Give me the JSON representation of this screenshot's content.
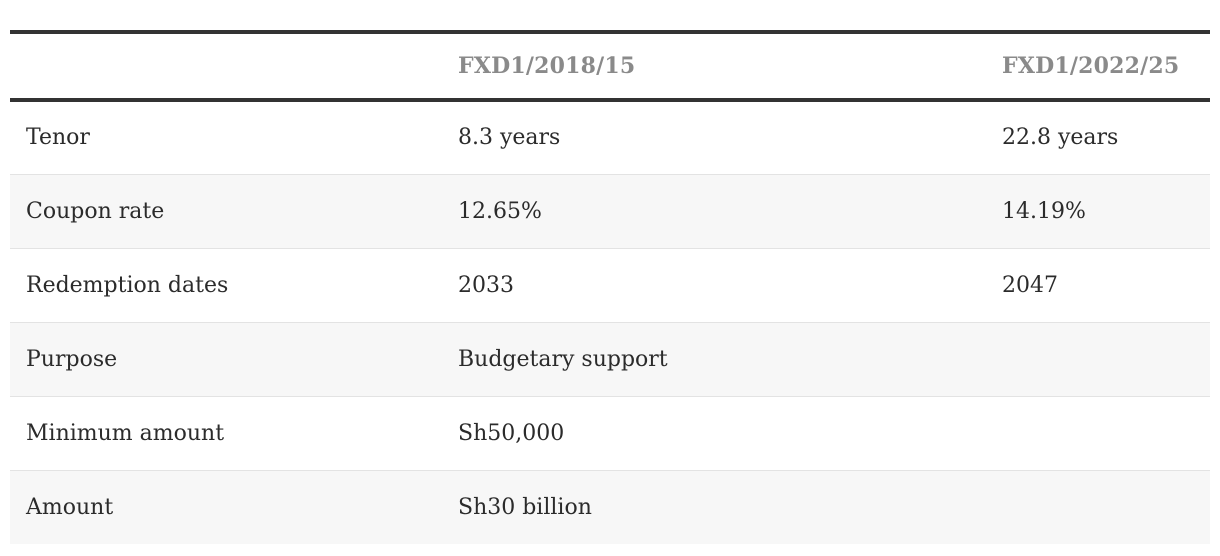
{
  "table": {
    "headers": [
      "",
      "FXD1/2018/15",
      "FXD1/2022/25"
    ],
    "rows": [
      {
        "label": "Tenor",
        "a": "8.3 years",
        "b": "22.8 years"
      },
      {
        "label": "Coupon rate",
        "a": "12.65%",
        "b": "14.19%"
      },
      {
        "label": "Redemption dates",
        "a": "2033",
        "b": "2047"
      },
      {
        "label": "Purpose",
        "a": "Budgetary support",
        "b": ""
      },
      {
        "label": "Minimum amount",
        "a": "Sh50,000",
        "b": ""
      },
      {
        "label": "Amount",
        "a": "Sh30 billion",
        "b": ""
      }
    ]
  }
}
